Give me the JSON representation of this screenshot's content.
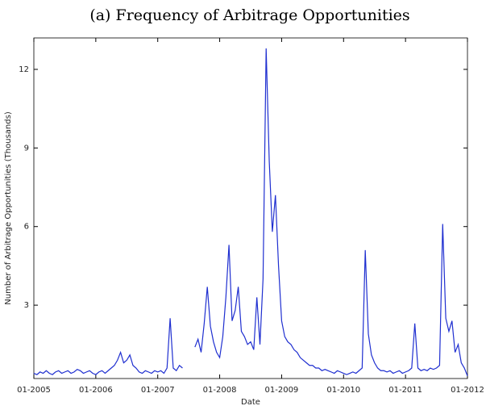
{
  "chart_data": {
    "type": "line",
    "title": "(a) Frequency of Arbitrage Opportunities",
    "x_label": "Date",
    "y_label": "Number of Arbitrage Opportunities (Thousands)",
    "xlim": [
      2005,
      2012
    ],
    "ylim": [
      0.2,
      13.2
    ],
    "xticks": [
      {
        "value": 2005,
        "label": "01-2005"
      },
      {
        "value": 2006,
        "label": "01-2006"
      },
      {
        "value": 2007,
        "label": "01-2007"
      },
      {
        "value": 2008,
        "label": "01-2008"
      },
      {
        "value": 2009,
        "label": "01-2009"
      },
      {
        "value": 2010,
        "label": "01-2010"
      },
      {
        "value": 2011,
        "label": "01-2011"
      },
      {
        "value": 2012,
        "label": "01-2012"
      }
    ],
    "yticks": [
      3,
      6,
      9,
      12
    ],
    "x": [
      2005,
      2005.05,
      2005.1,
      2005.15,
      2005.2,
      2005.25,
      2005.3,
      2005.35,
      2005.4,
      2005.45,
      2005.5,
      2005.55,
      2005.6,
      2005.65,
      2005.7,
      2005.75,
      2005.8,
      2005.85,
      2005.9,
      2005.95,
      2006,
      2006.05,
      2006.1,
      2006.15,
      2006.2,
      2006.25,
      2006.3,
      2006.35,
      2006.4,
      2006.45,
      2006.5,
      2006.55,
      2006.6,
      2006.65,
      2006.7,
      2006.75,
      2006.8,
      2006.85,
      2006.9,
      2006.95,
      2007,
      2007.05,
      2007.1,
      2007.15,
      2007.2,
      2007.25,
      2007.3,
      2007.35,
      2007.4,
      2007.45,
      2007.5,
      2007.55,
      2007.6,
      2007.65,
      2007.7,
      2007.75,
      2007.8,
      2007.85,
      2007.9,
      2007.95,
      2008,
      2008.05,
      2008.1,
      2008.15,
      2008.2,
      2008.25,
      2008.3,
      2008.35,
      2008.4,
      2008.45,
      2008.5,
      2008.55,
      2008.6,
      2008.65,
      2008.7,
      2008.75,
      2008.8,
      2008.85,
      2008.9,
      2008.95,
      2009,
      2009.05,
      2009.1,
      2009.15,
      2009.2,
      2009.25,
      2009.3,
      2009.35,
      2009.4,
      2009.45,
      2009.5,
      2009.55,
      2009.6,
      2009.65,
      2009.7,
      2009.75,
      2009.8,
      2009.85,
      2009.9,
      2009.95,
      2010,
      2010.05,
      2010.1,
      2010.15,
      2010.2,
      2010.25,
      2010.3,
      2010.35,
      2010.4,
      2010.45,
      2010.5,
      2010.55,
      2010.6,
      2010.65,
      2010.7,
      2010.75,
      2010.8,
      2010.85,
      2010.9,
      2010.95,
      2011,
      2011.05,
      2011.1,
      2011.15,
      2011.2,
      2011.25,
      2011.3,
      2011.35,
      2011.4,
      2011.45,
      2011.5,
      2011.55,
      2011.6,
      2011.65,
      2011.7,
      2011.75,
      2011.8,
      2011.85,
      2011.9,
      2011.95,
      2012
    ],
    "series": [
      {
        "color": "#1f2fd0",
        "values": [
          0.4,
          0.35,
          0.45,
          0.4,
          0.5,
          0.4,
          0.35,
          0.45,
          0.5,
          0.4,
          0.45,
          0.5,
          0.4,
          0.45,
          0.55,
          0.5,
          0.4,
          0.45,
          0.5,
          0.4,
          0.35,
          0.45,
          0.5,
          0.4,
          0.5,
          0.6,
          0.7,
          0.9,
          1.2,
          0.8,
          0.9,
          1.1,
          0.7,
          0.6,
          0.45,
          0.4,
          0.5,
          0.45,
          0.4,
          0.5,
          0.45,
          0.5,
          0.4,
          0.6,
          2.5,
          0.6,
          0.5,
          0.7,
          0.6,
          null,
          null,
          null,
          1.4,
          1.7,
          1.2,
          2.3,
          3.7,
          2.2,
          1.6,
          1.2,
          1.0,
          1.8,
          3.3,
          5.3,
          2.4,
          2.8,
          3.7,
          2.0,
          1.8,
          1.5,
          1.6,
          1.3,
          3.3,
          1.5,
          4.0,
          12.8,
          8.5,
          5.8,
          7.2,
          4.5,
          2.4,
          1.8,
          1.6,
          1.5,
          1.3,
          1.2,
          1.0,
          0.9,
          0.8,
          0.7,
          0.7,
          0.6,
          0.6,
          0.5,
          0.55,
          0.5,
          0.45,
          0.4,
          0.5,
          0.45,
          0.4,
          0.35,
          0.4,
          0.45,
          0.4,
          0.5,
          0.6,
          5.1,
          1.9,
          1.1,
          0.8,
          0.6,
          0.5,
          0.5,
          0.45,
          0.5,
          0.4,
          0.45,
          0.5,
          0.4,
          0.45,
          0.5,
          0.6,
          2.3,
          0.6,
          0.5,
          0.55,
          0.5,
          0.6,
          0.55,
          0.6,
          0.7,
          6.1,
          2.5,
          2.0,
          2.4,
          1.2,
          1.5,
          0.8,
          0.6,
          0.3
        ]
      }
    ]
  }
}
